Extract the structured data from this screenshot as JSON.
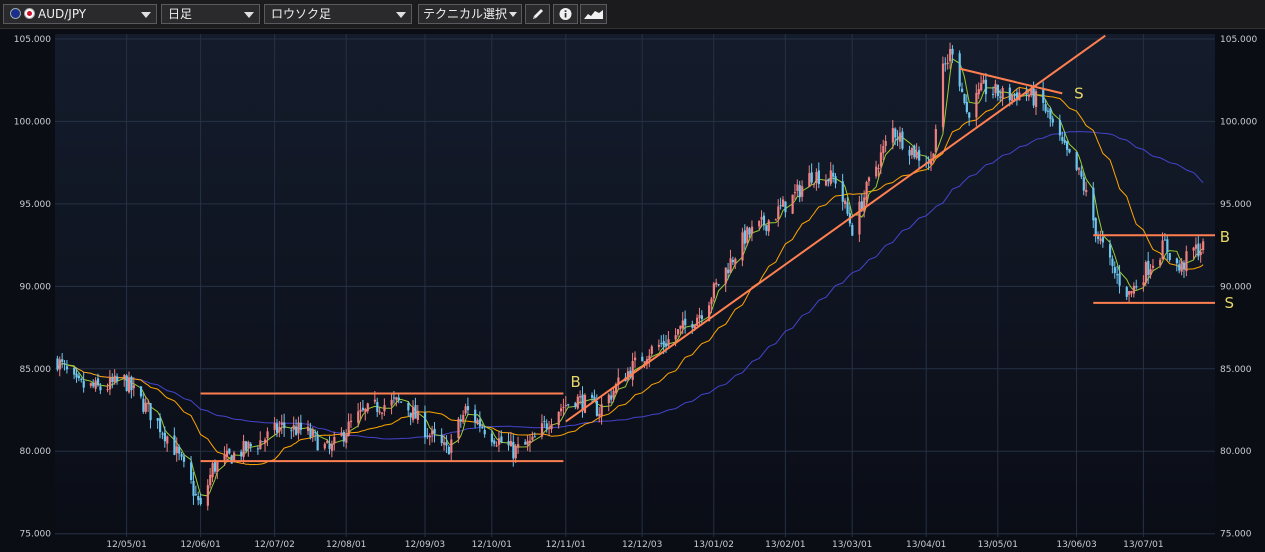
{
  "toolbar": {
    "pair": "AUD/JPY",
    "timeframe": "日足",
    "chart_type": "ロウソク足",
    "technical_label": "テクニカル選択",
    "icons": [
      "pencil-icon",
      "info-icon",
      "chart-icon"
    ]
  },
  "colors": {
    "background": "#0a0d14",
    "grid": "#253145",
    "bull": "#f08080",
    "bear": "#6ec6ee",
    "ma_short": "#9acd32",
    "ma_mid": "#ffa500",
    "ma_long": "#4444cc",
    "annotation": "#ff7f50",
    "label": "#e6d66a"
  },
  "chart_data": {
    "type": "candlestick",
    "ylim": [
      74.8,
      105.3
    ],
    "yticks": [
      75,
      80,
      85,
      90,
      95,
      100,
      105
    ],
    "ytick_labels": [
      "75.000",
      "80.000",
      "85.000",
      "90.000",
      "95.000",
      "100.000",
      "105.000"
    ],
    "x_start": "2012-04-01",
    "x_end": "2013-07-31",
    "xtick_dates": [
      "2012-05-01",
      "2012-06-01",
      "2012-07-02",
      "2012-08-01",
      "2012-09-03",
      "2012-10-01",
      "2012-11-01",
      "2012-12-03",
      "2013-01-02",
      "2013-02-01",
      "2013-03-01",
      "2013-04-01",
      "2013-05-01",
      "2013-06-03",
      "2013-07-01"
    ],
    "xtick_labels": [
      "12/05/01",
      "12/06/01",
      "12/07/02",
      "12/08/01",
      "12/09/03",
      "12/10/01",
      "12/11/01",
      "12/12/03",
      "13/01/02",
      "13/02/01",
      "13/03/01",
      "13/04/01",
      "13/05/01",
      "13/06/03",
      "13/07/01"
    ],
    "price_path": [
      [
        "2012-04-02",
        85.5
      ],
      [
        "2012-04-10",
        84.0
      ],
      [
        "2012-04-20",
        83.8
      ],
      [
        "2012-04-30",
        84.3
      ],
      [
        "2012-05-10",
        82.5
      ],
      [
        "2012-05-20",
        80.5
      ],
      [
        "2012-05-28",
        78.0
      ],
      [
        "2012-06-01",
        76.5
      ],
      [
        "2012-06-06",
        79.0
      ],
      [
        "2012-06-15",
        79.8
      ],
      [
        "2012-06-25",
        80.5
      ],
      [
        "2012-07-05",
        81.5
      ],
      [
        "2012-07-15",
        81.2
      ],
      [
        "2012-07-25",
        80.0
      ],
      [
        "2012-08-05",
        82.0
      ],
      [
        "2012-08-15",
        82.8
      ],
      [
        "2012-08-25",
        83.0
      ],
      [
        "2012-09-05",
        81.0
      ],
      [
        "2012-09-12",
        80.0
      ],
      [
        "2012-09-20",
        82.5
      ],
      [
        "2012-10-01",
        81.0
      ],
      [
        "2012-10-10",
        80.0
      ],
      [
        "2012-10-18",
        80.5
      ],
      [
        "2012-10-28",
        82.5
      ],
      [
        "2012-11-05",
        83.2
      ],
      [
        "2012-11-15",
        82.5
      ],
      [
        "2012-11-25",
        84.5
      ],
      [
        "2012-12-05",
        86.0
      ],
      [
        "2012-12-15",
        86.8
      ],
      [
        "2012-12-28",
        88.5
      ],
      [
        "2013-01-05",
        90.5
      ],
      [
        "2013-01-15",
        93.0
      ],
      [
        "2013-01-25",
        94.0
      ],
      [
        "2013-02-05",
        95.5
      ],
      [
        "2013-02-12",
        96.8
      ],
      [
        "2013-02-22",
        96.5
      ],
      [
        "2013-03-01",
        93.5
      ],
      [
        "2013-03-10",
        97.0
      ],
      [
        "2013-03-18",
        99.5
      ],
      [
        "2013-03-28",
        98.0
      ],
      [
        "2013-04-03",
        97.5
      ],
      [
        "2013-04-08",
        103.0
      ],
      [
        "2013-04-12",
        104.5
      ],
      [
        "2013-04-18",
        100.5
      ],
      [
        "2013-04-25",
        102.0
      ],
      [
        "2013-05-05",
        101.5
      ],
      [
        "2013-05-12",
        101.8
      ],
      [
        "2013-05-20",
        101.0
      ],
      [
        "2013-05-28",
        98.5
      ],
      [
        "2013-06-05",
        96.5
      ],
      [
        "2013-06-12",
        93.0
      ],
      [
        "2013-06-18",
        91.0
      ],
      [
        "2013-06-25",
        89.5
      ],
      [
        "2013-07-02",
        91.0
      ],
      [
        "2013-07-10",
        92.5
      ],
      [
        "2013-07-16",
        91.0
      ],
      [
        "2013-07-22",
        92.2
      ],
      [
        "2013-07-26",
        92.3
      ]
    ],
    "lines": [
      {
        "name": "resistance",
        "from": [
          "2012-06-01",
          83.5
        ],
        "to": [
          "2012-10-31",
          83.5
        ]
      },
      {
        "name": "support",
        "from": [
          "2012-06-01",
          79.4
        ],
        "to": [
          "2012-10-31",
          79.4
        ]
      },
      {
        "name": "uptrend",
        "from": [
          "2012-11-01",
          81.8
        ],
        "to": [
          "2013-06-15",
          105.2
        ]
      },
      {
        "name": "downtrend",
        "from": [
          "2013-04-15",
          103.2
        ],
        "to": [
          "2013-05-28",
          101.7
        ]
      },
      {
        "name": "range-top",
        "from": [
          "2013-06-10",
          93.1
        ],
        "to": [
          "2013-07-31",
          93.1
        ]
      },
      {
        "name": "range-bottom",
        "from": [
          "2013-06-10",
          89.0
        ],
        "to": [
          "2013-07-31",
          89.0
        ]
      }
    ],
    "annotations": [
      {
        "text": "B",
        "x": "2012-11-03",
        "y": 84.2
      },
      {
        "text": "S",
        "x": "2013-06-02",
        "y": 101.7
      },
      {
        "text": "B",
        "x": "2013-08-02",
        "y": 93.0
      },
      {
        "text": "S",
        "x": "2013-08-04",
        "y": 89.0
      }
    ]
  }
}
